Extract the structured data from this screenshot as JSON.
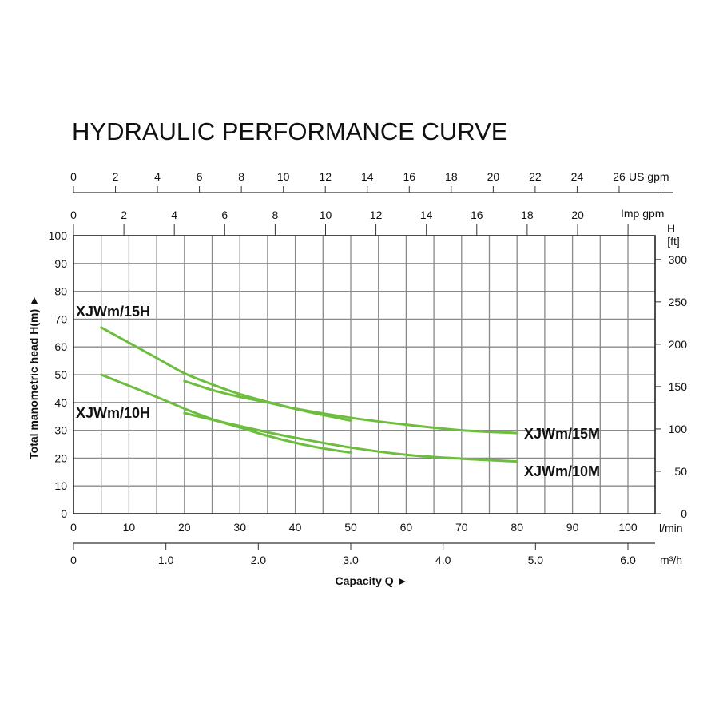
{
  "chart_data": {
    "type": "line",
    "title": "HYDRAULIC PERFORMANCE CURVE",
    "xlabel": "Capacity Q ►",
    "ylabel": "Total manometric head H(m) ►",
    "x_unit": "l/min",
    "x2_unit": "m³/h",
    "top_axis_1_unit": "US gpm",
    "top_axis_2_unit": "Imp gpm",
    "right_axis_unit_1": "H",
    "right_axis_unit_2": "[ft]",
    "xlim": [
      0,
      105
    ],
    "ylim": [
      0,
      100
    ],
    "grid": true,
    "x_ticks": [
      0,
      10,
      20,
      30,
      40,
      50,
      60,
      70,
      80,
      90,
      100
    ],
    "y_ticks": [
      0,
      10,
      20,
      30,
      40,
      50,
      60,
      70,
      80,
      90,
      100
    ],
    "m3h_ticks": [
      "0",
      "1.0",
      "2.0",
      "3.0",
      "4.0",
      "5.0",
      "6.0"
    ],
    "us_gpm_ticks": [
      0,
      2,
      4,
      6,
      8,
      10,
      12,
      14,
      16,
      18,
      20,
      22,
      24,
      26
    ],
    "imp_gpm_ticks": [
      0,
      2,
      4,
      6,
      8,
      10,
      12,
      14,
      16,
      18,
      20
    ],
    "ft_ticks": [
      0,
      50,
      100,
      150,
      200,
      250,
      300
    ],
    "line_color": "#6dbd3e",
    "series": [
      {
        "name": "XJWm/15H",
        "x": [
          5,
          10,
          15,
          20,
          25,
          30,
          35,
          40,
          45,
          50
        ],
        "y": [
          67,
          61.5,
          56,
          50.5,
          46.5,
          43,
          40.2,
          37.7,
          35.5,
          33.5
        ]
      },
      {
        "name": "XJWm/15M",
        "x": [
          20,
          25,
          30,
          35,
          40,
          50,
          60,
          70,
          80
        ],
        "y": [
          47.7,
          44.5,
          42,
          40,
          37.8,
          34.5,
          32,
          30,
          29
        ]
      },
      {
        "name": "XJWm/10H",
        "x": [
          5,
          10,
          15,
          20,
          25,
          30,
          35,
          40,
          45,
          50
        ],
        "y": [
          50,
          46,
          42,
          37.8,
          34,
          31,
          28,
          25.5,
          23.5,
          22
        ]
      },
      {
        "name": "XJWm/10M",
        "x": [
          20,
          25,
          30,
          35,
          40,
          50,
          60,
          70,
          80
        ],
        "y": [
          36.2,
          33.8,
          31.5,
          29.3,
          27.3,
          23.8,
          21.2,
          19.8,
          18.8
        ]
      }
    ]
  }
}
